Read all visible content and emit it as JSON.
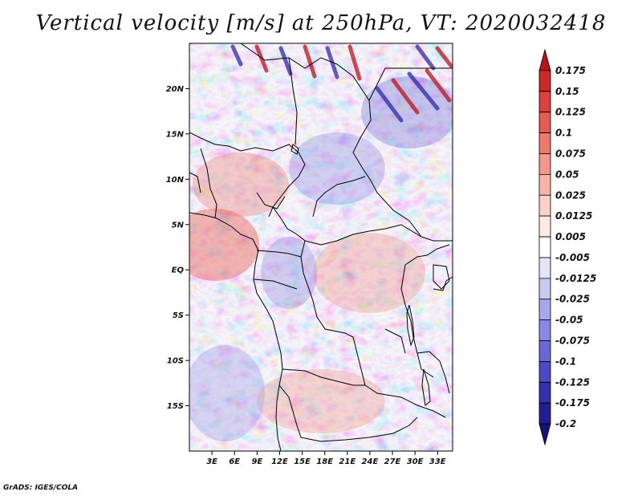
{
  "title": "Vertical velocity [m/s] at 250hPa, VT: 2020032418",
  "credit": "GrADS: IGES/COLA",
  "map": {
    "region": "Central Africa",
    "lat_labels": [
      "20N",
      "15N",
      "10N",
      "5N",
      "EQ",
      "5S",
      "10S",
      "15S"
    ],
    "lon_labels": [
      "3E",
      "6E",
      "9E",
      "12E",
      "15E",
      "18E",
      "21E",
      "24E",
      "27E",
      "30E",
      "33E"
    ],
    "lat_values": [
      20,
      15,
      10,
      5,
      0,
      -5,
      -10,
      -15
    ],
    "lon_values": [
      3,
      6,
      9,
      12,
      15,
      18,
      21,
      24,
      27,
      30,
      33
    ],
    "lon_range": [
      0,
      35
    ],
    "lat_range": [
      -20,
      25
    ]
  },
  "colorbar": {
    "labels": [
      "0.175",
      "0.15",
      "0.125",
      "0.1",
      "0.075",
      "0.05",
      "0.025",
      "0.0125",
      "0.005",
      "-0.005",
      "-0.0125",
      "-0.025",
      "-0.05",
      "-0.075",
      "-0.1",
      "-0.125",
      "-0.175",
      "-0.2"
    ],
    "colors": [
      "#b8141c",
      "#cc2a2a",
      "#dc4040",
      "#e65a55",
      "#ee786f",
      "#f4968c",
      "#f8b4ab",
      "#fbd1ca",
      "#fde9e5",
      "#ffffff",
      "#e4e4f8",
      "#c9c9f2",
      "#a9a8ec",
      "#8988e2",
      "#6a67d6",
      "#4c48c6",
      "#3431b0",
      "#211e96",
      "#15127a"
    ]
  }
}
